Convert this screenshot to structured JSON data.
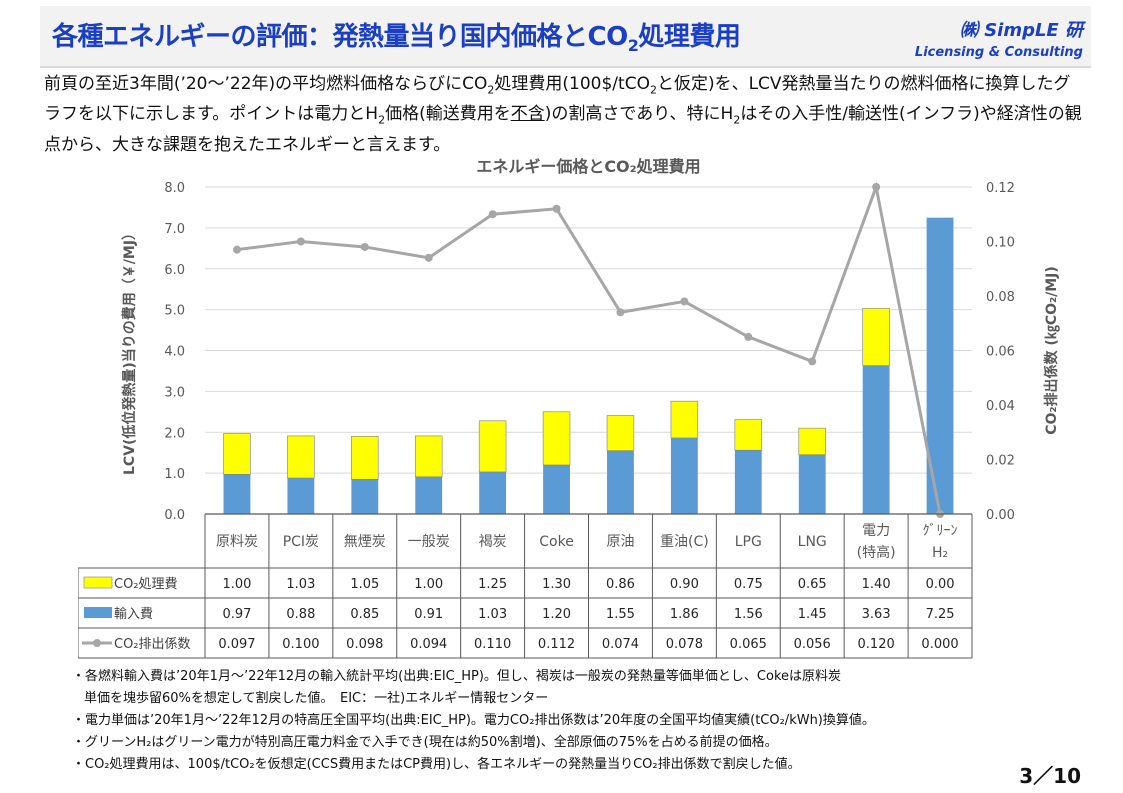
{
  "header": {
    "title_main": "各種エネルギーの評価：発熱量当り国内価格とCO",
    "title_sub": "2",
    "title_tail": "処理費用",
    "brand_name": "㈱ SimpLE 研",
    "brand_sub": "Licensing & Consulting"
  },
  "intro": {
    "p1": "前頁の至近3年間(’20～’22年)の平均燃料価格ならびにCO",
    "p1_sub": "2",
    "p2": "処理費用(100$/tCO",
    "p2_sub": "2",
    "p3": "と仮定)を、LCV発熱量当たりの燃料価格に換算したグラフを以下に示します。ポイントは電力とH",
    "p3_sub": "2",
    "p4": "価格(輸送費用を",
    "p4_u": "不含",
    "p5": ")の割高さであり、特にH",
    "p5_sub": "2",
    "p6": "はその入手性/輸送性(インフラ)や経済性の観点から、大きな課題を抱えたエネルギーと言えます。"
  },
  "chart_data": {
    "type": "bar",
    "stacked": true,
    "title": "エネルギー価格とCO₂処理費用",
    "ylabel": "LCV(低位発熱量)当りの費用（￥/MJ）",
    "y2label": "CO₂排出係数 (㎏CO₂/MJ)",
    "ylim": [
      0,
      8
    ],
    "y2lim": [
      0,
      0.12
    ],
    "yticks": [
      "0.0",
      "1.0",
      "2.0",
      "3.0",
      "4.0",
      "5.0",
      "6.0",
      "7.0",
      "8.0"
    ],
    "y2ticks": [
      "0.00",
      "0.02",
      "0.04",
      "0.06",
      "0.08",
      "0.10",
      "0.12"
    ],
    "categories": [
      [
        "原料炭"
      ],
      [
        "PCI炭"
      ],
      [
        "無煙炭"
      ],
      [
        "一般炭"
      ],
      [
        "褐炭"
      ],
      [
        "Coke"
      ],
      [
        "原油"
      ],
      [
        "重油(C)"
      ],
      [
        "LPG"
      ],
      [
        "LNG"
      ],
      [
        "電力",
        "(特高)"
      ],
      [
        "ｸﾞﾘｰﾝ",
        "H₂"
      ]
    ],
    "series": [
      {
        "name": "CO₂処理費",
        "kind": "bar",
        "color": "#ffff00",
        "values": [
          1.0,
          1.03,
          1.05,
          1.0,
          1.25,
          1.3,
          0.86,
          0.9,
          0.75,
          0.65,
          1.4,
          0.0
        ],
        "labels": [
          "1.00",
          "1.03",
          "1.05",
          "1.00",
          "1.25",
          "1.30",
          "0.86",
          "0.90",
          "0.75",
          "0.65",
          "1.40",
          "0.00"
        ]
      },
      {
        "name": "輸入費",
        "kind": "bar",
        "color": "#5b9bd5",
        "values": [
          0.97,
          0.88,
          0.85,
          0.91,
          1.03,
          1.2,
          1.55,
          1.86,
          1.56,
          1.45,
          3.63,
          7.25
        ],
        "labels": [
          "0.97",
          "0.88",
          "0.85",
          "0.91",
          "1.03",
          "1.20",
          "1.55",
          "1.86",
          "1.56",
          "1.45",
          "3.63",
          "7.25"
        ]
      },
      {
        "name": "CO₂排出係数",
        "kind": "line",
        "axis": "y2",
        "color": "#a6a6a6",
        "values": [
          0.097,
          0.1,
          0.098,
          0.094,
          0.11,
          0.112,
          0.074,
          0.078,
          0.065,
          0.056,
          0.12,
          0.0
        ],
        "labels": [
          "0.097",
          "0.100",
          "0.098",
          "0.094",
          "0.110",
          "0.112",
          "0.074",
          "0.078",
          "0.065",
          "0.056",
          "0.120",
          "0.000"
        ]
      }
    ]
  },
  "notes": [
    "・各燃料輸入費は’20年1月～’22年12月の輸入統計平均(出典:EIC_HP)。但し、褐炭は一般炭の発熱量等価単価とし、Cokeは原料炭",
    "単価を塊歩留60%を想定して割戻した値。　EIC：一社)エネルギー情報センター",
    "・電力単価は’20年1月～’22年12月の特高圧全国平均(出典:EIC_HP)。電力CO₂排出係数は’20年度の全国平均値実績(tCO₂/kWh)換算値。",
    "・グリーンH₂はグリーン電力が特別高圧電力料金で入手でき(現在は約50%割増)、全部原価の75%を占める前提の価格。",
    "・CO₂処理費用は、100$/tCO₂を仮想定(CCS費用またはCP費用)し、各エネルギーの発熱量当りCO₂排出係数で割戻した値。"
  ],
  "page": {
    "number": "3／10"
  }
}
